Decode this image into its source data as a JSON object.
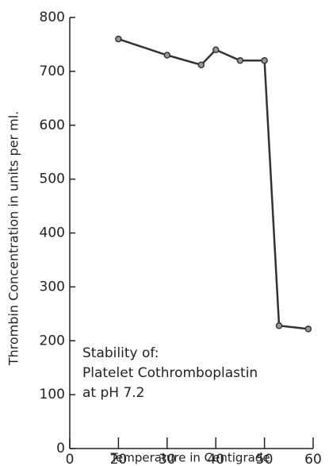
{
  "chart_data": {
    "type": "line",
    "x_label": "Temperature in Centigrade",
    "y_label": "Thrombin Concentration in units per ml.",
    "annotation": [
      "Stability of:",
      "Platelet Cothromboplastin",
      "at pH 7.2"
    ],
    "x": [
      20,
      30,
      37,
      40,
      45,
      50,
      53,
      59
    ],
    "series": [
      {
        "name": "Platelet Cothromboplastin",
        "color": "#333333",
        "values": [
          760,
          730,
          712,
          740,
          720,
          720,
          228,
          222
        ]
      }
    ],
    "xlim": [
      10,
      60
    ],
    "xticks": [
      {
        "value": 10,
        "label": "0"
      },
      20,
      30,
      40,
      50,
      60
    ],
    "ylim": [
      0,
      800
    ],
    "yticks": [
      0,
      100,
      200,
      300,
      400,
      500,
      600,
      700,
      800
    ]
  }
}
